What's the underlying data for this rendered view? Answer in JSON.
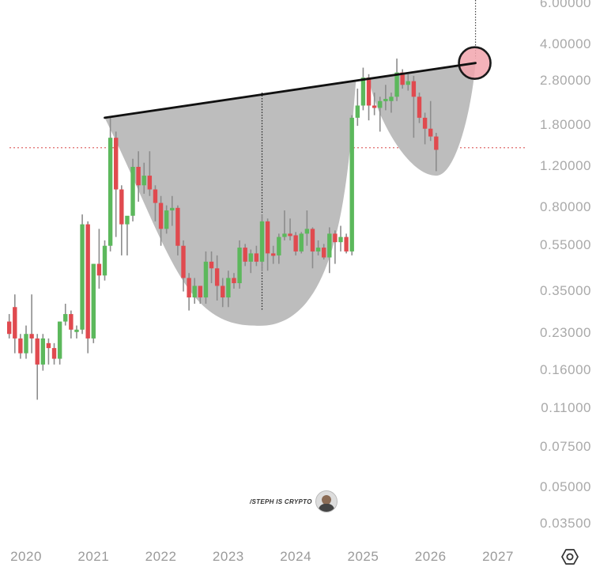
{
  "chart_data": {
    "type": "candlestick",
    "title": "",
    "watermark": "/STEPH IS CRYPTO",
    "scale": "log",
    "y_ticks": [
      "6.00000",
      "4.00000",
      "2.80000",
      "1.80000",
      "1.20000",
      "0.80000",
      "0.55000",
      "0.35000",
      "0.23000",
      "0.16000",
      "0.11000",
      "0.07500",
      "0.05000",
      "0.03500"
    ],
    "y_tick_values": [
      6.0,
      4.0,
      2.8,
      1.8,
      1.2,
      0.8,
      0.55,
      0.35,
      0.23,
      0.16,
      0.11,
      0.075,
      0.05,
      0.035
    ],
    "x_ticks": [
      "2020",
      "2021",
      "2022",
      "2023",
      "2024",
      "2025",
      "2026",
      "2027"
    ],
    "ylim": [
      0.03,
      6.5
    ],
    "xlim": [
      "2019-10",
      "2027-07"
    ],
    "colors": {
      "up": "#5cb85c",
      "down": "#e04a4f",
      "wick": "#8c8c8c",
      "pattern_fill": "#bdbdbd",
      "trendline": "#111111",
      "target_circle": "#f2a5ad",
      "hline": "#e06b6b"
    },
    "annotations": [
      {
        "type": "trendline",
        "from": {
          "x": "2021-03",
          "y": 1.95
        },
        "to": {
          "x": "2026-09",
          "y": 3.35
        },
        "label": "neckline"
      },
      {
        "type": "horizontal_line",
        "y": 1.45,
        "style": "dotted",
        "color": "#e06b6b"
      },
      {
        "type": "vertical_line",
        "x": "2023-07",
        "style": "dotted"
      },
      {
        "type": "vertical_line",
        "x": "2026-09",
        "style": "dotted"
      },
      {
        "type": "circle",
        "x": "2026-09",
        "y": 3.35,
        "label": "target"
      },
      {
        "type": "shape",
        "name": "cup",
        "from": "2021-03",
        "to": "2024-12",
        "bottom": 0.25
      },
      {
        "type": "shape",
        "name": "handle",
        "from": "2025-01",
        "to": "2026-09",
        "bottom": 1.1
      }
    ],
    "candles": [
      {
        "t": "2019-10",
        "o": 0.26,
        "h": 0.28,
        "l": 0.22,
        "c": 0.23
      },
      {
        "t": "2019-11",
        "o": 0.3,
        "h": 0.34,
        "l": 0.19,
        "c": 0.22
      },
      {
        "t": "2019-12",
        "o": 0.22,
        "h": 0.23,
        "l": 0.18,
        "c": 0.19
      },
      {
        "t": "2020-01",
        "o": 0.19,
        "h": 0.25,
        "l": 0.18,
        "c": 0.23
      },
      {
        "t": "2020-02",
        "o": 0.23,
        "h": 0.34,
        "l": 0.19,
        "c": 0.22
      },
      {
        "t": "2020-03",
        "o": 0.22,
        "h": 0.23,
        "l": 0.12,
        "c": 0.17
      },
      {
        "t": "2020-04",
        "o": 0.17,
        "h": 0.23,
        "l": 0.16,
        "c": 0.22
      },
      {
        "t": "2020-05",
        "o": 0.21,
        "h": 0.22,
        "l": 0.17,
        "c": 0.2
      },
      {
        "t": "2020-06",
        "o": 0.2,
        "h": 0.21,
        "l": 0.17,
        "c": 0.18
      },
      {
        "t": "2020-07",
        "o": 0.18,
        "h": 0.26,
        "l": 0.17,
        "c": 0.26
      },
      {
        "t": "2020-08",
        "o": 0.26,
        "h": 0.31,
        "l": 0.25,
        "c": 0.28
      },
      {
        "t": "2020-09",
        "o": 0.28,
        "h": 0.29,
        "l": 0.22,
        "c": 0.24
      },
      {
        "t": "2020-10",
        "o": 0.24,
        "h": 0.25,
        "l": 0.22,
        "c": 0.24
      },
      {
        "t": "2020-11",
        "o": 0.24,
        "h": 0.75,
        "l": 0.23,
        "c": 0.68
      },
      {
        "t": "2020-12",
        "o": 0.68,
        "h": 0.7,
        "l": 0.19,
        "c": 0.22
      },
      {
        "t": "2021-01",
        "o": 0.22,
        "h": 0.46,
        "l": 0.21,
        "c": 0.46
      },
      {
        "t": "2021-02",
        "o": 0.46,
        "h": 0.65,
        "l": 0.36,
        "c": 0.41
      },
      {
        "t": "2021-03",
        "o": 0.41,
        "h": 0.58,
        "l": 0.39,
        "c": 0.55
      },
      {
        "t": "2021-04",
        "o": 0.55,
        "h": 1.95,
        "l": 0.52,
        "c": 1.6
      },
      {
        "t": "2021-05",
        "o": 1.6,
        "h": 1.7,
        "l": 0.6,
        "c": 0.96
      },
      {
        "t": "2021-06",
        "o": 0.96,
        "h": 1.0,
        "l": 0.5,
        "c": 0.68
      },
      {
        "t": "2021-07",
        "o": 0.68,
        "h": 0.72,
        "l": 0.5,
        "c": 0.74
      },
      {
        "t": "2021-08",
        "o": 0.74,
        "h": 1.3,
        "l": 0.7,
        "c": 1.2
      },
      {
        "t": "2021-09",
        "o": 1.2,
        "h": 1.4,
        "l": 0.85,
        "c": 1.0
      },
      {
        "t": "2021-10",
        "o": 1.0,
        "h": 1.25,
        "l": 0.92,
        "c": 1.1
      },
      {
        "t": "2021-11",
        "o": 1.1,
        "h": 1.4,
        "l": 0.9,
        "c": 0.96
      },
      {
        "t": "2021-12",
        "o": 0.96,
        "h": 1.0,
        "l": 0.7,
        "c": 0.84
      },
      {
        "t": "2022-01",
        "o": 0.84,
        "h": 0.9,
        "l": 0.55,
        "c": 0.65
      },
      {
        "t": "2022-02",
        "o": 0.65,
        "h": 0.82,
        "l": 0.62,
        "c": 0.78
      },
      {
        "t": "2022-03",
        "o": 0.78,
        "h": 0.9,
        "l": 0.67,
        "c": 0.8
      },
      {
        "t": "2022-04",
        "o": 0.8,
        "h": 0.82,
        "l": 0.5,
        "c": 0.55
      },
      {
        "t": "2022-05",
        "o": 0.55,
        "h": 0.58,
        "l": 0.35,
        "c": 0.4
      },
      {
        "t": "2022-06",
        "o": 0.4,
        "h": 0.42,
        "l": 0.29,
        "c": 0.33
      },
      {
        "t": "2022-07",
        "o": 0.33,
        "h": 0.4,
        "l": 0.31,
        "c": 0.37
      },
      {
        "t": "2022-08",
        "o": 0.37,
        "h": 0.37,
        "l": 0.31,
        "c": 0.33
      },
      {
        "t": "2022-09",
        "o": 0.33,
        "h": 0.52,
        "l": 0.31,
        "c": 0.47
      },
      {
        "t": "2022-10",
        "o": 0.47,
        "h": 0.52,
        "l": 0.38,
        "c": 0.44
      },
      {
        "t": "2022-11",
        "o": 0.44,
        "h": 0.5,
        "l": 0.32,
        "c": 0.37
      },
      {
        "t": "2022-12",
        "o": 0.37,
        "h": 0.4,
        "l": 0.3,
        "c": 0.33
      },
      {
        "t": "2023-01",
        "o": 0.33,
        "h": 0.43,
        "l": 0.3,
        "c": 0.4
      },
      {
        "t": "2023-02",
        "o": 0.4,
        "h": 0.42,
        "l": 0.36,
        "c": 0.38
      },
      {
        "t": "2023-03",
        "o": 0.38,
        "h": 0.58,
        "l": 0.36,
        "c": 0.54
      },
      {
        "t": "2023-04",
        "o": 0.54,
        "h": 0.56,
        "l": 0.45,
        "c": 0.47
      },
      {
        "t": "2023-05",
        "o": 0.47,
        "h": 0.53,
        "l": 0.42,
        "c": 0.51
      },
      {
        "t": "2023-06",
        "o": 0.51,
        "h": 0.55,
        "l": 0.45,
        "c": 0.47
      },
      {
        "t": "2023-07",
        "o": 0.47,
        "h": 0.75,
        "l": 0.43,
        "c": 0.7
      },
      {
        "t": "2023-08",
        "o": 0.7,
        "h": 0.72,
        "l": 0.43,
        "c": 0.51
      },
      {
        "t": "2023-09",
        "o": 0.51,
        "h": 0.55,
        "l": 0.46,
        "c": 0.5
      },
      {
        "t": "2023-10",
        "o": 0.5,
        "h": 0.62,
        "l": 0.46,
        "c": 0.6
      },
      {
        "t": "2023-11",
        "o": 0.6,
        "h": 0.78,
        "l": 0.58,
        "c": 0.62
      },
      {
        "t": "2023-12",
        "o": 0.62,
        "h": 0.72,
        "l": 0.58,
        "c": 0.61
      },
      {
        "t": "2024-01",
        "o": 0.61,
        "h": 0.63,
        "l": 0.5,
        "c": 0.52
      },
      {
        "t": "2024-02",
        "o": 0.52,
        "h": 0.63,
        "l": 0.51,
        "c": 0.62
      },
      {
        "t": "2024-03",
        "o": 0.62,
        "h": 0.78,
        "l": 0.55,
        "c": 0.65
      },
      {
        "t": "2024-04",
        "o": 0.65,
        "h": 0.66,
        "l": 0.44,
        "c": 0.52
      },
      {
        "t": "2024-05",
        "o": 0.52,
        "h": 0.58,
        "l": 0.5,
        "c": 0.54
      },
      {
        "t": "2024-06",
        "o": 0.54,
        "h": 0.56,
        "l": 0.48,
        "c": 0.49
      },
      {
        "t": "2024-07",
        "o": 0.49,
        "h": 0.66,
        "l": 0.42,
        "c": 0.62
      },
      {
        "t": "2024-08",
        "o": 0.62,
        "h": 0.64,
        "l": 0.46,
        "c": 0.57
      },
      {
        "t": "2024-09",
        "o": 0.57,
        "h": 0.67,
        "l": 0.52,
        "c": 0.6
      },
      {
        "t": "2024-10",
        "o": 0.6,
        "h": 0.62,
        "l": 0.51,
        "c": 0.52
      },
      {
        "t": "2024-11",
        "o": 0.52,
        "h": 2.0,
        "l": 0.5,
        "c": 1.95
      },
      {
        "t": "2024-12",
        "o": 1.95,
        "h": 2.6,
        "l": 1.8,
        "c": 2.2
      },
      {
        "t": "2025-01",
        "o": 2.2,
        "h": 3.2,
        "l": 2.1,
        "c": 2.9
      },
      {
        "t": "2025-02",
        "o": 2.9,
        "h": 3.0,
        "l": 1.9,
        "c": 2.2
      },
      {
        "t": "2025-03",
        "o": 2.2,
        "h": 2.5,
        "l": 2.0,
        "c": 2.15
      },
      {
        "t": "2025-04",
        "o": 2.15,
        "h": 2.4,
        "l": 1.7,
        "c": 2.3
      },
      {
        "t": "2025-05",
        "o": 2.3,
        "h": 2.7,
        "l": 2.1,
        "c": 2.35
      },
      {
        "t": "2025-06",
        "o": 2.3,
        "h": 2.5,
        "l": 2.05,
        "c": 2.4
      },
      {
        "t": "2025-07",
        "o": 2.4,
        "h": 3.5,
        "l": 2.3,
        "c": 3.05
      },
      {
        "t": "2025-08",
        "o": 3.05,
        "h": 3.15,
        "l": 2.6,
        "c": 2.7
      },
      {
        "t": "2025-09",
        "o": 2.7,
        "h": 3.0,
        "l": 2.55,
        "c": 2.8
      },
      {
        "t": "2025-10",
        "o": 2.8,
        "h": 2.95,
        "l": 1.6,
        "c": 2.4
      },
      {
        "t": "2025-11",
        "o": 2.4,
        "h": 2.5,
        "l": 1.85,
        "c": 1.95
      },
      {
        "t": "2025-12",
        "o": 1.95,
        "h": 2.05,
        "l": 1.5,
        "c": 1.75
      },
      {
        "t": "2026-01",
        "o": 1.75,
        "h": 2.3,
        "l": 1.55,
        "c": 1.62
      },
      {
        "t": "2026-02",
        "o": 1.62,
        "h": 1.68,
        "l": 1.15,
        "c": 1.42
      }
    ]
  },
  "axis": {
    "y_labels": [
      "6.00000",
      "4.00000",
      "2.80000",
      "1.80000",
      "1.20000",
      "0.80000",
      "0.55000",
      "0.35000",
      "0.23000",
      "0.16000",
      "0.11000",
      "0.07500",
      "0.05000",
      "0.03500"
    ],
    "x_labels": [
      "2020",
      "2021",
      "2022",
      "2023",
      "2024",
      "2025",
      "2026",
      "2027"
    ]
  },
  "watermark": {
    "text": "/STEPH IS CRYPTO"
  },
  "settings_icon": "gear-icon"
}
